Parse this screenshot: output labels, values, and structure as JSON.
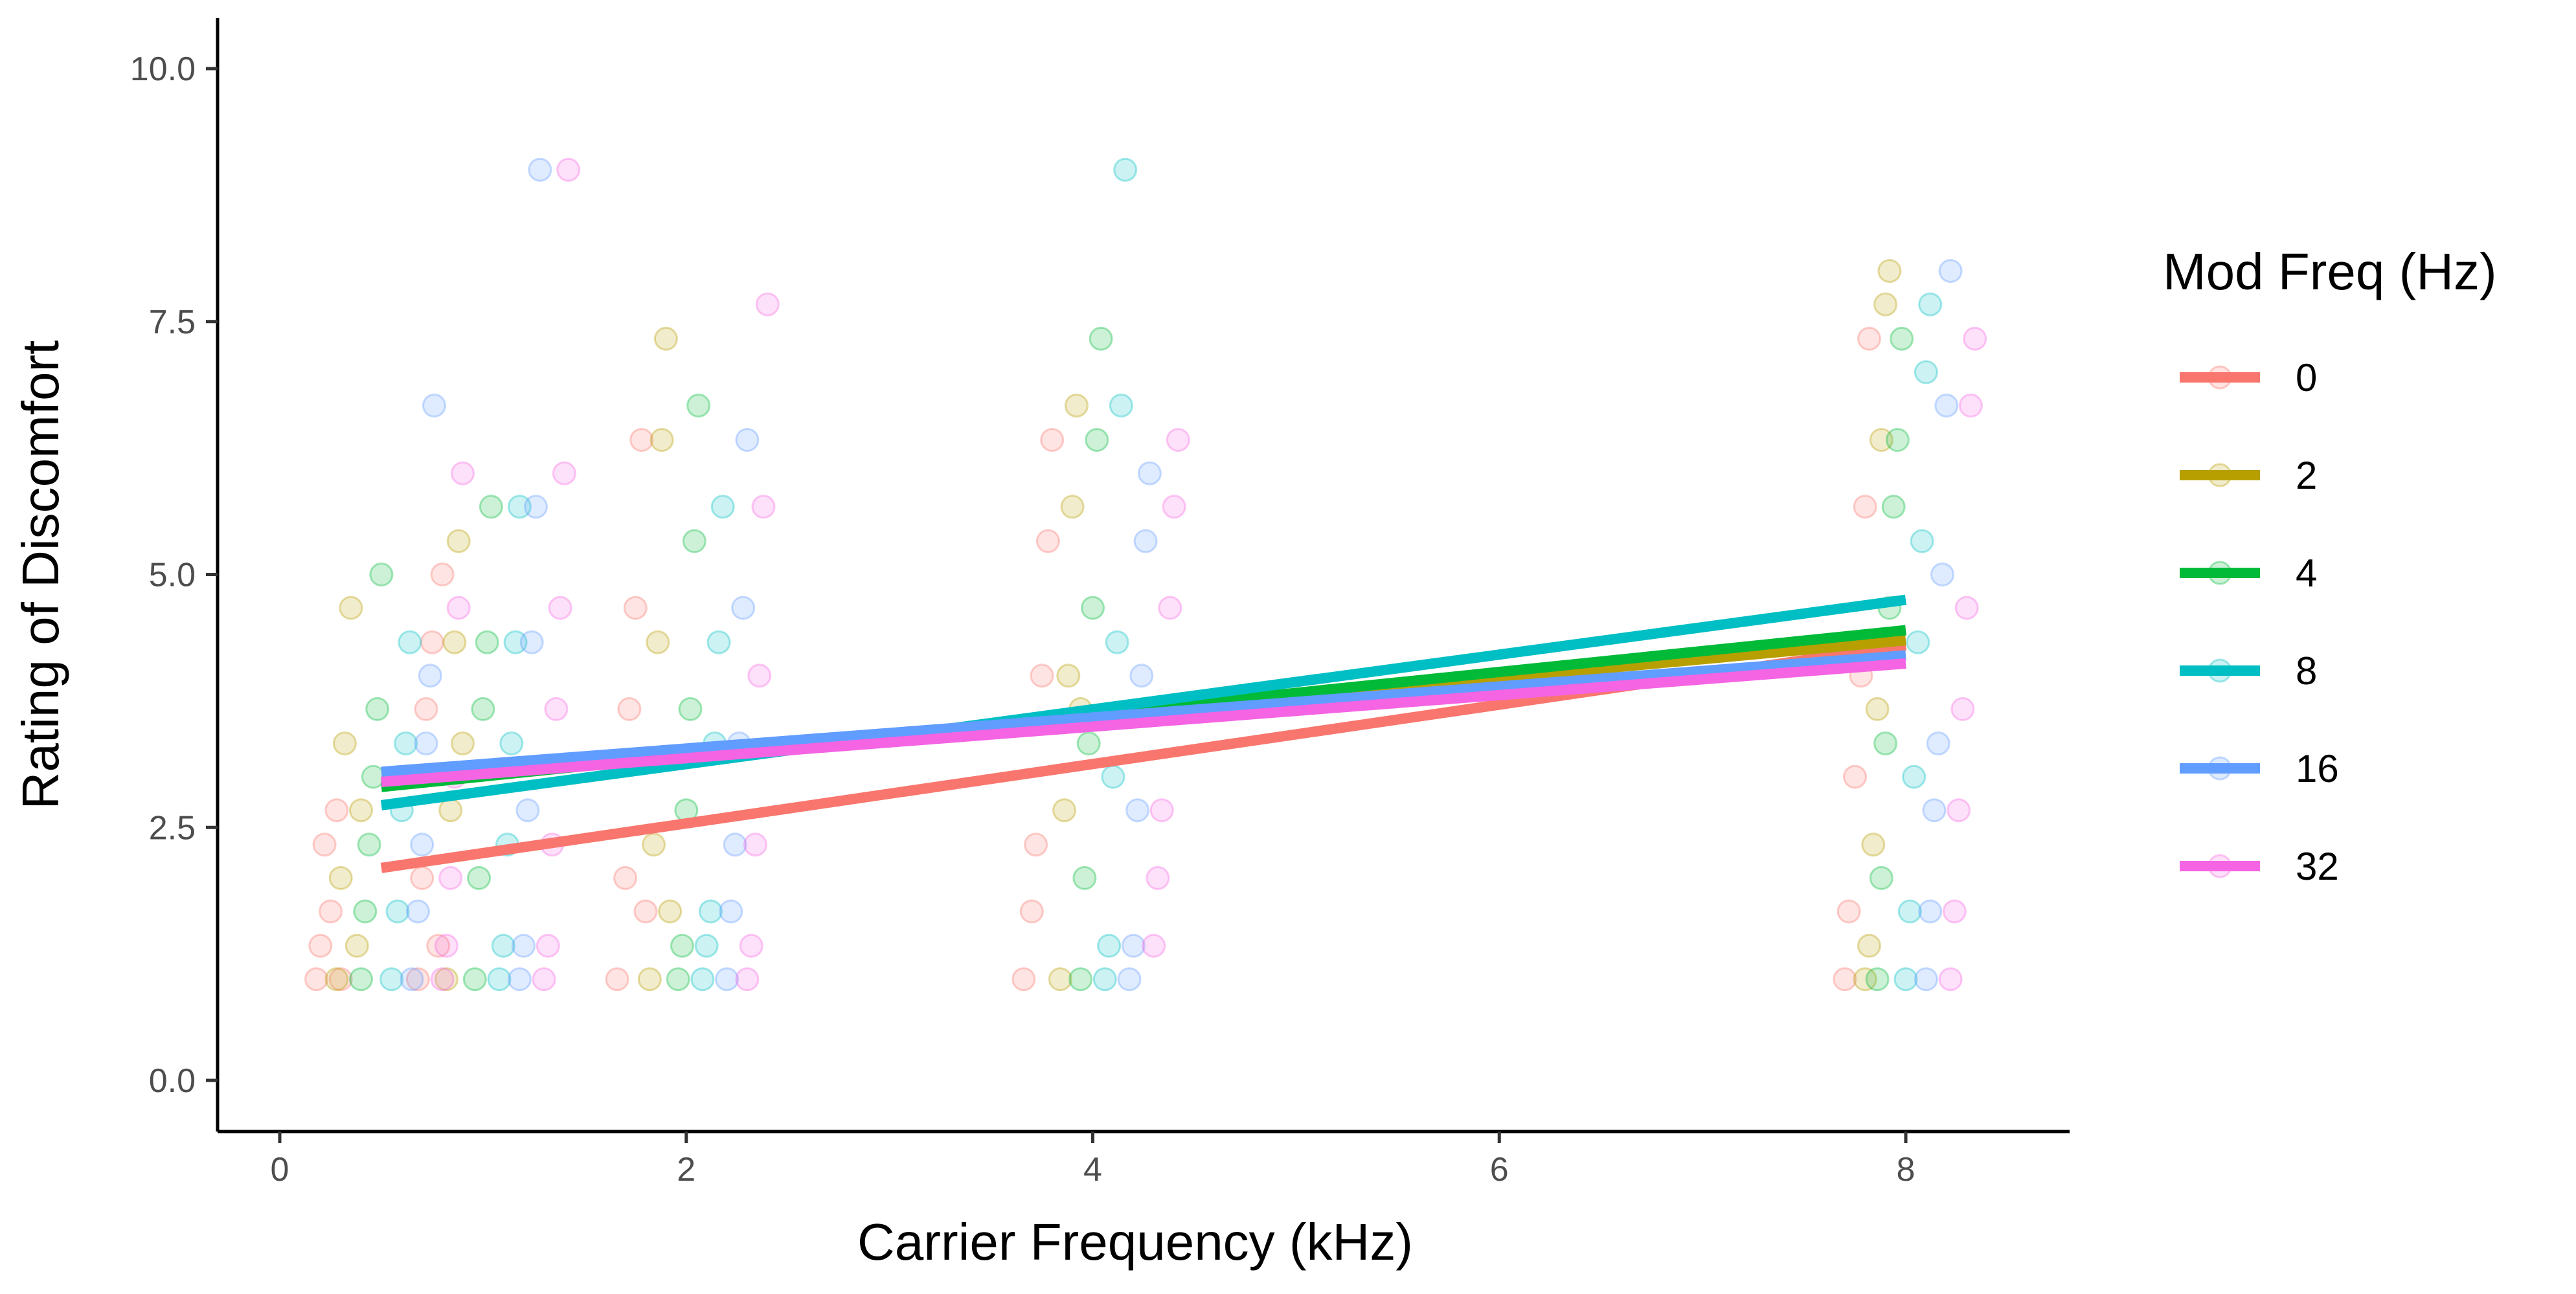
{
  "chart_data": {
    "type": "scatter",
    "xlabel": "Carrier Frequency (kHz)",
    "ylabel": "Rating of Discomfort",
    "xlim": [
      -0.3,
      8.8
    ],
    "ylim": [
      -0.5,
      10.5
    ],
    "x_ticks": [
      0,
      2,
      4,
      6,
      8
    ],
    "x_tick_labels": [
      "0",
      "2",
      "4",
      "6",
      "8"
    ],
    "y_ticks": [
      0,
      2.5,
      5,
      7.5,
      10
    ],
    "y_tick_labels": [
      "0.0",
      "2.5",
      "5.0",
      "7.5",
      "10.0"
    ],
    "grid": false,
    "legend": {
      "title": "Mod Freq (Hz)",
      "position": "right"
    },
    "carrier_frequencies": [
      0.5,
      2,
      4,
      8
    ],
    "series": [
      {
        "name": "0",
        "color": "#F8766D",
        "points": [
          [
            0.18,
            1
          ],
          [
            0.2,
            1.33
          ],
          [
            0.22,
            2.33
          ],
          [
            0.25,
            1.67
          ],
          [
            0.28,
            2.67
          ],
          [
            0.3,
            1
          ],
          [
            0.68,
            1
          ],
          [
            0.7,
            2
          ],
          [
            0.72,
            3.67
          ],
          [
            0.75,
            4.33
          ],
          [
            0.78,
            1.33
          ],
          [
            0.8,
            5
          ],
          [
            1.66,
            1
          ],
          [
            1.7,
            2
          ],
          [
            1.72,
            3.67
          ],
          [
            1.75,
            4.67
          ],
          [
            1.78,
            6.33
          ],
          [
            1.8,
            1.67
          ],
          [
            3.66,
            1
          ],
          [
            3.7,
            1.67
          ],
          [
            3.72,
            2.33
          ],
          [
            3.75,
            4
          ],
          [
            3.78,
            5.33
          ],
          [
            3.8,
            6.33
          ],
          [
            7.7,
            1
          ],
          [
            7.72,
            1.67
          ],
          [
            7.75,
            3
          ],
          [
            7.78,
            4
          ],
          [
            7.8,
            5.67
          ],
          [
            7.82,
            7.33
          ]
        ],
        "fit": [
          [
            0.5,
            2.1
          ],
          [
            8,
            4.3
          ]
        ]
      },
      {
        "name": "2",
        "color": "#B79F00",
        "points": [
          [
            0.28,
            1
          ],
          [
            0.3,
            2
          ],
          [
            0.32,
            3.33
          ],
          [
            0.35,
            4.67
          ],
          [
            0.38,
            1.33
          ],
          [
            0.4,
            2.67
          ],
          [
            0.82,
            1
          ],
          [
            0.84,
            2.67
          ],
          [
            0.86,
            4.33
          ],
          [
            0.88,
            5.33
          ],
          [
            0.9,
            3.33
          ],
          [
            1.82,
            1
          ],
          [
            1.84,
            2.33
          ],
          [
            1.86,
            4.33
          ],
          [
            1.88,
            6.33
          ],
          [
            1.9,
            7.33
          ],
          [
            1.92,
            1.67
          ],
          [
            3.84,
            1
          ],
          [
            3.86,
            2.67
          ],
          [
            3.88,
            4
          ],
          [
            3.9,
            5.67
          ],
          [
            3.92,
            6.67
          ],
          [
            3.94,
            3.67
          ],
          [
            7.8,
            1
          ],
          [
            7.82,
            1.33
          ],
          [
            7.84,
            2.33
          ],
          [
            7.86,
            3.67
          ],
          [
            7.88,
            6.33
          ],
          [
            7.9,
            7.67
          ],
          [
            7.92,
            8
          ]
        ],
        "fit": [
          [
            0.5,
            2.95
          ],
          [
            8,
            4.35
          ]
        ]
      },
      {
        "name": "4",
        "color": "#00BA38",
        "points": [
          [
            0.4,
            1
          ],
          [
            0.42,
            1.67
          ],
          [
            0.44,
            2.33
          ],
          [
            0.46,
            3
          ],
          [
            0.48,
            3.67
          ],
          [
            0.5,
            5
          ],
          [
            0.96,
            1
          ],
          [
            0.98,
            2
          ],
          [
            1,
            3.67
          ],
          [
            1.02,
            4.33
          ],
          [
            1.04,
            5.67
          ],
          [
            1.96,
            1
          ],
          [
            1.98,
            1.33
          ],
          [
            2,
            2.67
          ],
          [
            2.02,
            3.67
          ],
          [
            2.04,
            5.33
          ],
          [
            2.06,
            6.67
          ],
          [
            3.94,
            1
          ],
          [
            3.96,
            2
          ],
          [
            3.98,
            3.33
          ],
          [
            4,
            4.67
          ],
          [
            4.02,
            6.33
          ],
          [
            4.04,
            7.33
          ],
          [
            7.86,
            1
          ],
          [
            7.88,
            2
          ],
          [
            7.9,
            3.33
          ],
          [
            7.92,
            4.67
          ],
          [
            7.94,
            5.67
          ],
          [
            7.96,
            6.33
          ],
          [
            7.98,
            7.33
          ]
        ],
        "fit": [
          [
            0.5,
            2.9
          ],
          [
            8,
            4.45
          ]
        ]
      },
      {
        "name": "8",
        "color": "#00BFC4",
        "points": [
          [
            0.55,
            1
          ],
          [
            0.58,
            1.67
          ],
          [
            0.6,
            2.67
          ],
          [
            0.62,
            3.33
          ],
          [
            0.64,
            4.33
          ],
          [
            1.08,
            1
          ],
          [
            1.1,
            1.33
          ],
          [
            1.12,
            2.33
          ],
          [
            1.14,
            3.33
          ],
          [
            1.16,
            4.33
          ],
          [
            1.18,
            5.67
          ],
          [
            2.08,
            1
          ],
          [
            2.1,
            1.33
          ],
          [
            2.12,
            1.67
          ],
          [
            2.14,
            3.33
          ],
          [
            2.16,
            4.33
          ],
          [
            2.18,
            5.67
          ],
          [
            4.06,
            1
          ],
          [
            4.08,
            1.33
          ],
          [
            4.1,
            3
          ],
          [
            4.12,
            4.33
          ],
          [
            4.14,
            6.67
          ],
          [
            4.16,
            9
          ],
          [
            8,
            1
          ],
          [
            8.02,
            1.67
          ],
          [
            8.04,
            3
          ],
          [
            8.06,
            4.33
          ],
          [
            8.08,
            5.33
          ],
          [
            8.1,
            7
          ],
          [
            8.12,
            7.67
          ]
        ],
        "fit": [
          [
            0.5,
            2.72
          ],
          [
            8,
            4.75
          ]
        ]
      },
      {
        "name": "16",
        "color": "#619CFF",
        "points": [
          [
            0.65,
            1
          ],
          [
            0.68,
            1.67
          ],
          [
            0.7,
            2.33
          ],
          [
            0.72,
            3.33
          ],
          [
            0.74,
            4
          ],
          [
            0.76,
            6.67
          ],
          [
            1.18,
            1
          ],
          [
            1.2,
            1.33
          ],
          [
            1.22,
            2.67
          ],
          [
            1.24,
            4.33
          ],
          [
            1.26,
            5.67
          ],
          [
            1.28,
            9
          ],
          [
            2.2,
            1
          ],
          [
            2.22,
            1.67
          ],
          [
            2.24,
            2.33
          ],
          [
            2.26,
            3.33
          ],
          [
            2.28,
            4.67
          ],
          [
            2.3,
            6.33
          ],
          [
            4.18,
            1
          ],
          [
            4.2,
            1.33
          ],
          [
            4.22,
            2.67
          ],
          [
            4.24,
            4
          ],
          [
            4.26,
            5.33
          ],
          [
            4.28,
            6
          ],
          [
            8.1,
            1
          ],
          [
            8.12,
            1.67
          ],
          [
            8.14,
            2.67
          ],
          [
            8.16,
            3.33
          ],
          [
            8.18,
            5
          ],
          [
            8.2,
            6.67
          ],
          [
            8.22,
            8
          ]
        ],
        "fit": [
          [
            0.5,
            3.05
          ],
          [
            8,
            4.2
          ]
        ]
      },
      {
        "name": "32",
        "color": "#F564E3",
        "points": [
          [
            0.8,
            1
          ],
          [
            0.82,
            1.33
          ],
          [
            0.84,
            2
          ],
          [
            0.86,
            3
          ],
          [
            0.88,
            4.67
          ],
          [
            0.9,
            6
          ],
          [
            1.3,
            1
          ],
          [
            1.32,
            1.33
          ],
          [
            1.34,
            2.33
          ],
          [
            1.36,
            3.67
          ],
          [
            1.38,
            4.67
          ],
          [
            1.4,
            6
          ],
          [
            1.42,
            9
          ],
          [
            2.3,
            1
          ],
          [
            2.32,
            1.33
          ],
          [
            2.34,
            2.33
          ],
          [
            2.36,
            4
          ],
          [
            2.38,
            5.67
          ],
          [
            2.4,
            7.67
          ],
          [
            4.3,
            1.33
          ],
          [
            4.32,
            2
          ],
          [
            4.34,
            2.67
          ],
          [
            4.36,
            3.67
          ],
          [
            4.38,
            4.67
          ],
          [
            4.4,
            5.67
          ],
          [
            4.42,
            6.33
          ],
          [
            8.22,
            1
          ],
          [
            8.24,
            1.67
          ],
          [
            8.26,
            2.67
          ],
          [
            8.28,
            3.67
          ],
          [
            8.3,
            4.67
          ],
          [
            8.32,
            6.67
          ],
          [
            8.34,
            7.33
          ]
        ],
        "fit": [
          [
            0.5,
            2.95
          ],
          [
            8,
            4.12
          ]
        ]
      }
    ]
  }
}
